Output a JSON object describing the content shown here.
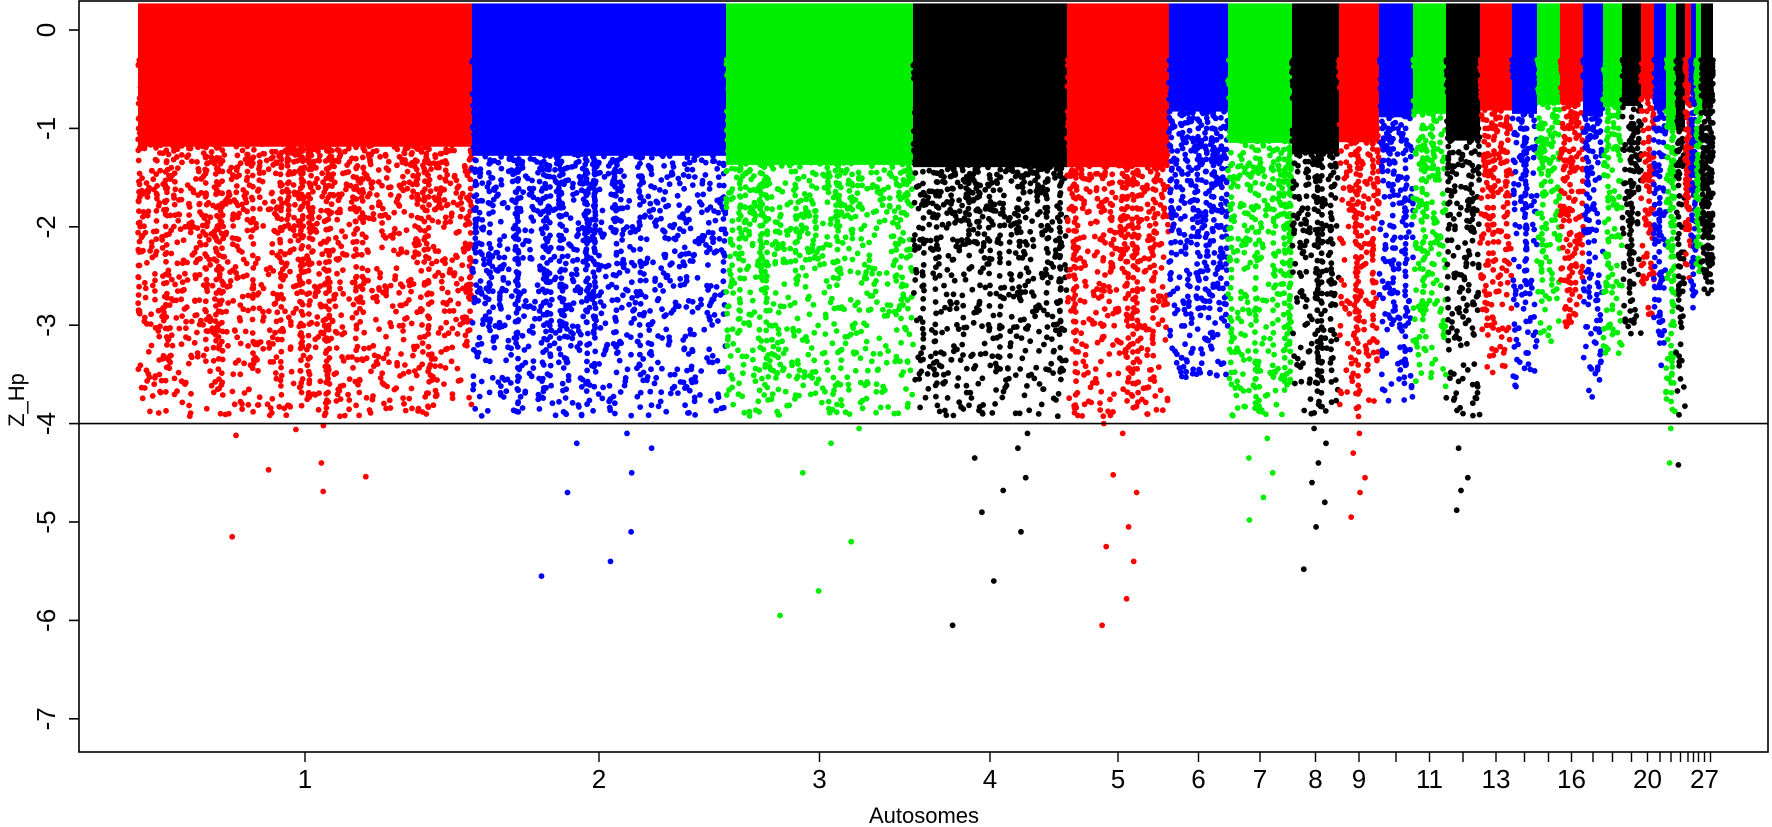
{
  "chart_data": {
    "type": "scatter",
    "subtype": "manhattan",
    "title": "",
    "xlabel": "Autosomes",
    "ylabel": "Z_Hp",
    "ylim": [
      -7.35,
      0.3
    ],
    "yticks": [
      0,
      -1,
      -2,
      -3,
      -4,
      -5,
      -6,
      -7
    ],
    "ytick_labels": [
      "0",
      "-1",
      "-2",
      "-3",
      "-4",
      "-5",
      "-6",
      "-7"
    ],
    "threshold": -4,
    "grid": false,
    "legend": "none",
    "color_cycle": [
      "#ff0000",
      "#0000ff",
      "#00ee00",
      "#000000"
    ],
    "colors": {
      "red": "#ff0000",
      "blue": "#0000ff",
      "green": "#00ee00",
      "black": "#000000"
    },
    "chromosomes": [
      {
        "chr": "1",
        "label": "1",
        "color": "red",
        "min_z": -5.15,
        "outliers": [
          -5.15,
          -4.69,
          -4.54,
          -4.47,
          -4.4,
          -4.12,
          -4.06,
          -4.02
        ]
      },
      {
        "chr": "2",
        "label": "2",
        "color": "blue",
        "min_z": -5.55,
        "outliers": [
          -5.55,
          -5.4,
          -5.1,
          -4.7,
          -4.5,
          -4.25,
          -4.2,
          -4.1
        ]
      },
      {
        "chr": "3",
        "label": "3",
        "color": "green",
        "min_z": -5.95,
        "outliers": [
          -5.95,
          -5.7,
          -5.2,
          -4.5,
          -4.2,
          -4.05
        ]
      },
      {
        "chr": "4",
        "label": "4",
        "color": "black",
        "min_z": -6.05,
        "outliers": [
          -6.05,
          -5.6,
          -5.1,
          -4.9,
          -4.68,
          -4.55,
          -4.35,
          -4.25,
          -4.1
        ]
      },
      {
        "chr": "5",
        "label": "5",
        "color": "red",
        "min_z": -6.05,
        "outliers": [
          -6.05,
          -5.78,
          -5.4,
          -5.25,
          -5.05,
          -4.7,
          -4.52,
          -4.1,
          -4.0
        ]
      },
      {
        "chr": "6",
        "label": "6",
        "color": "blue",
        "min_z": -3.6,
        "outliers": []
      },
      {
        "chr": "7",
        "label": "7",
        "color": "green",
        "min_z": -4.98,
        "outliers": [
          -4.98,
          -4.75,
          -4.5,
          -4.35,
          -4.15
        ]
      },
      {
        "chr": "8",
        "label": "8",
        "color": "black",
        "min_z": -5.48,
        "outliers": [
          -5.48,
          -5.05,
          -4.8,
          -4.6,
          -4.4,
          -4.2,
          -4.05
        ]
      },
      {
        "chr": "9",
        "label": "9",
        "color": "red",
        "min_z": -4.95,
        "outliers": [
          -4.95,
          -4.7,
          -4.55,
          -4.3,
          -4.1
        ]
      },
      {
        "chr": "10",
        "label": "",
        "color": "blue",
        "min_z": -3.85,
        "outliers": []
      },
      {
        "chr": "11",
        "label": "11",
        "color": "green",
        "min_z": -3.7,
        "outliers": []
      },
      {
        "chr": "12",
        "label": "",
        "color": "black",
        "min_z": -4.88,
        "outliers": [
          -4.88,
          -4.68,
          -4.55,
          -4.25
        ]
      },
      {
        "chr": "13",
        "label": "13",
        "color": "red",
        "min_z": -3.55,
        "outliers": []
      },
      {
        "chr": "14",
        "label": "",
        "color": "blue",
        "min_z": -3.7,
        "outliers": []
      },
      {
        "chr": "15",
        "label": "",
        "color": "green",
        "min_z": -3.3,
        "outliers": []
      },
      {
        "chr": "16",
        "label": "16",
        "color": "red",
        "min_z": -3.15,
        "outliers": []
      },
      {
        "chr": "17",
        "label": "",
        "color": "blue",
        "min_z": -3.8,
        "outliers": []
      },
      {
        "chr": "18",
        "label": "",
        "color": "green",
        "min_z": -3.4,
        "outliers": []
      },
      {
        "chr": "19",
        "label": "",
        "color": "black",
        "min_z": -3.35,
        "outliers": []
      },
      {
        "chr": "20",
        "label": "20",
        "color": "red",
        "min_z": -3.0,
        "outliers": []
      },
      {
        "chr": "21",
        "label": "",
        "color": "blue",
        "min_z": -3.55,
        "outliers": []
      },
      {
        "chr": "22",
        "label": "",
        "color": "green",
        "min_z": -4.4,
        "outliers": [
          -4.4,
          -4.05
        ]
      },
      {
        "chr": "23",
        "label": "",
        "color": "black",
        "min_z": -4.42,
        "outliers": [
          -4.42
        ]
      },
      {
        "chr": "24",
        "label": "",
        "color": "red",
        "min_z": -2.6,
        "outliers": []
      },
      {
        "chr": "25",
        "label": "",
        "color": "blue",
        "min_z": -2.9,
        "outliers": []
      },
      {
        "chr": "26",
        "label": "",
        "color": "green",
        "min_z": -2.55,
        "outliers": []
      },
      {
        "chr": "27",
        "label": "27",
        "color": "black",
        "min_z": -2.8,
        "outliers": []
      },
      {
        "chr": "28",
        "label": "",
        "color": "black",
        "min_z": -2.75,
        "outliers": []
      }
    ]
  }
}
